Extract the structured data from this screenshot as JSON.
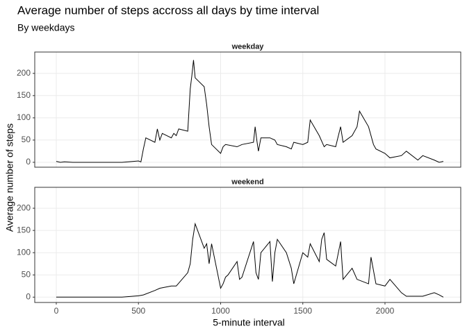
{
  "chart_data": [
    {
      "type": "line",
      "title": "Average number of steps accross all days by time interval",
      "subtitle": "By weekdays",
      "y_label": "Average number of steps",
      "strip": "weekday",
      "color": "#000000",
      "grid": true,
      "xlim": [
        -131,
        2461
      ],
      "ylim": [
        -11,
        248
      ],
      "xticks": [
        0,
        500,
        1000,
        1500,
        2000
      ],
      "yticks": [
        0,
        50,
        100,
        150,
        200
      ],
      "x": [
        0,
        25,
        50,
        100,
        200,
        300,
        400,
        500,
        515,
        530,
        545,
        600,
        615,
        630,
        645,
        700,
        715,
        730,
        745,
        800,
        815,
        825,
        835,
        845,
        900,
        915,
        930,
        945,
        1000,
        1015,
        1030,
        1100,
        1130,
        1200,
        1210,
        1220,
        1230,
        1245,
        1300,
        1330,
        1345,
        1400,
        1430,
        1445,
        1500,
        1530,
        1545,
        1600,
        1630,
        1645,
        1700,
        1730,
        1745,
        1800,
        1830,
        1845,
        1900,
        1930,
        1945,
        2000,
        2030,
        2100,
        2130,
        2200,
        2230,
        2300,
        2330,
        2355
      ],
      "values": [
        2,
        0,
        1,
        0,
        0,
        0,
        0,
        3,
        1,
        30,
        55,
        45,
        75,
        50,
        65,
        55,
        65,
        60,
        75,
        70,
        165,
        195,
        230,
        190,
        170,
        130,
        80,
        40,
        20,
        35,
        40,
        35,
        40,
        45,
        80,
        50,
        25,
        55,
        55,
        50,
        40,
        35,
        30,
        45,
        40,
        45,
        95,
        60,
        35,
        40,
        35,
        80,
        45,
        60,
        80,
        115,
        80,
        40,
        30,
        20,
        10,
        15,
        25,
        5,
        15,
        5,
        0,
        2
      ]
    },
    {
      "type": "line",
      "strip": "weekend",
      "x_label": "5-minute interval",
      "color": "#000000",
      "grid": true,
      "xlim": [
        -131,
        2461
      ],
      "ylim": [
        -12,
        247
      ],
      "xticks": [
        0,
        500,
        1000,
        1500,
        2000
      ],
      "yticks": [
        0,
        50,
        100,
        150,
        200
      ],
      "x": [
        0,
        100,
        200,
        300,
        400,
        500,
        530,
        600,
        630,
        700,
        730,
        800,
        815,
        830,
        845,
        900,
        915,
        930,
        945,
        1000,
        1015,
        1030,
        1045,
        1100,
        1115,
        1130,
        1200,
        1215,
        1230,
        1245,
        1300,
        1315,
        1330,
        1345,
        1400,
        1430,
        1445,
        1500,
        1530,
        1545,
        1600,
        1615,
        1630,
        1645,
        1700,
        1730,
        1745,
        1800,
        1830,
        1900,
        1915,
        1930,
        1945,
        2000,
        2030,
        2100,
        2130,
        2200,
        2230,
        2300,
        2330,
        2355
      ],
      "values": [
        0,
        0,
        0,
        0,
        0,
        3,
        5,
        15,
        20,
        25,
        25,
        55,
        75,
        130,
        165,
        110,
        120,
        75,
        120,
        20,
        30,
        45,
        50,
        80,
        40,
        45,
        125,
        55,
        40,
        100,
        125,
        35,
        100,
        130,
        100,
        65,
        30,
        100,
        90,
        120,
        80,
        130,
        145,
        85,
        70,
        125,
        40,
        65,
        40,
        30,
        90,
        60,
        30,
        25,
        40,
        10,
        2,
        2,
        2,
        10,
        5,
        0
      ]
    }
  ]
}
